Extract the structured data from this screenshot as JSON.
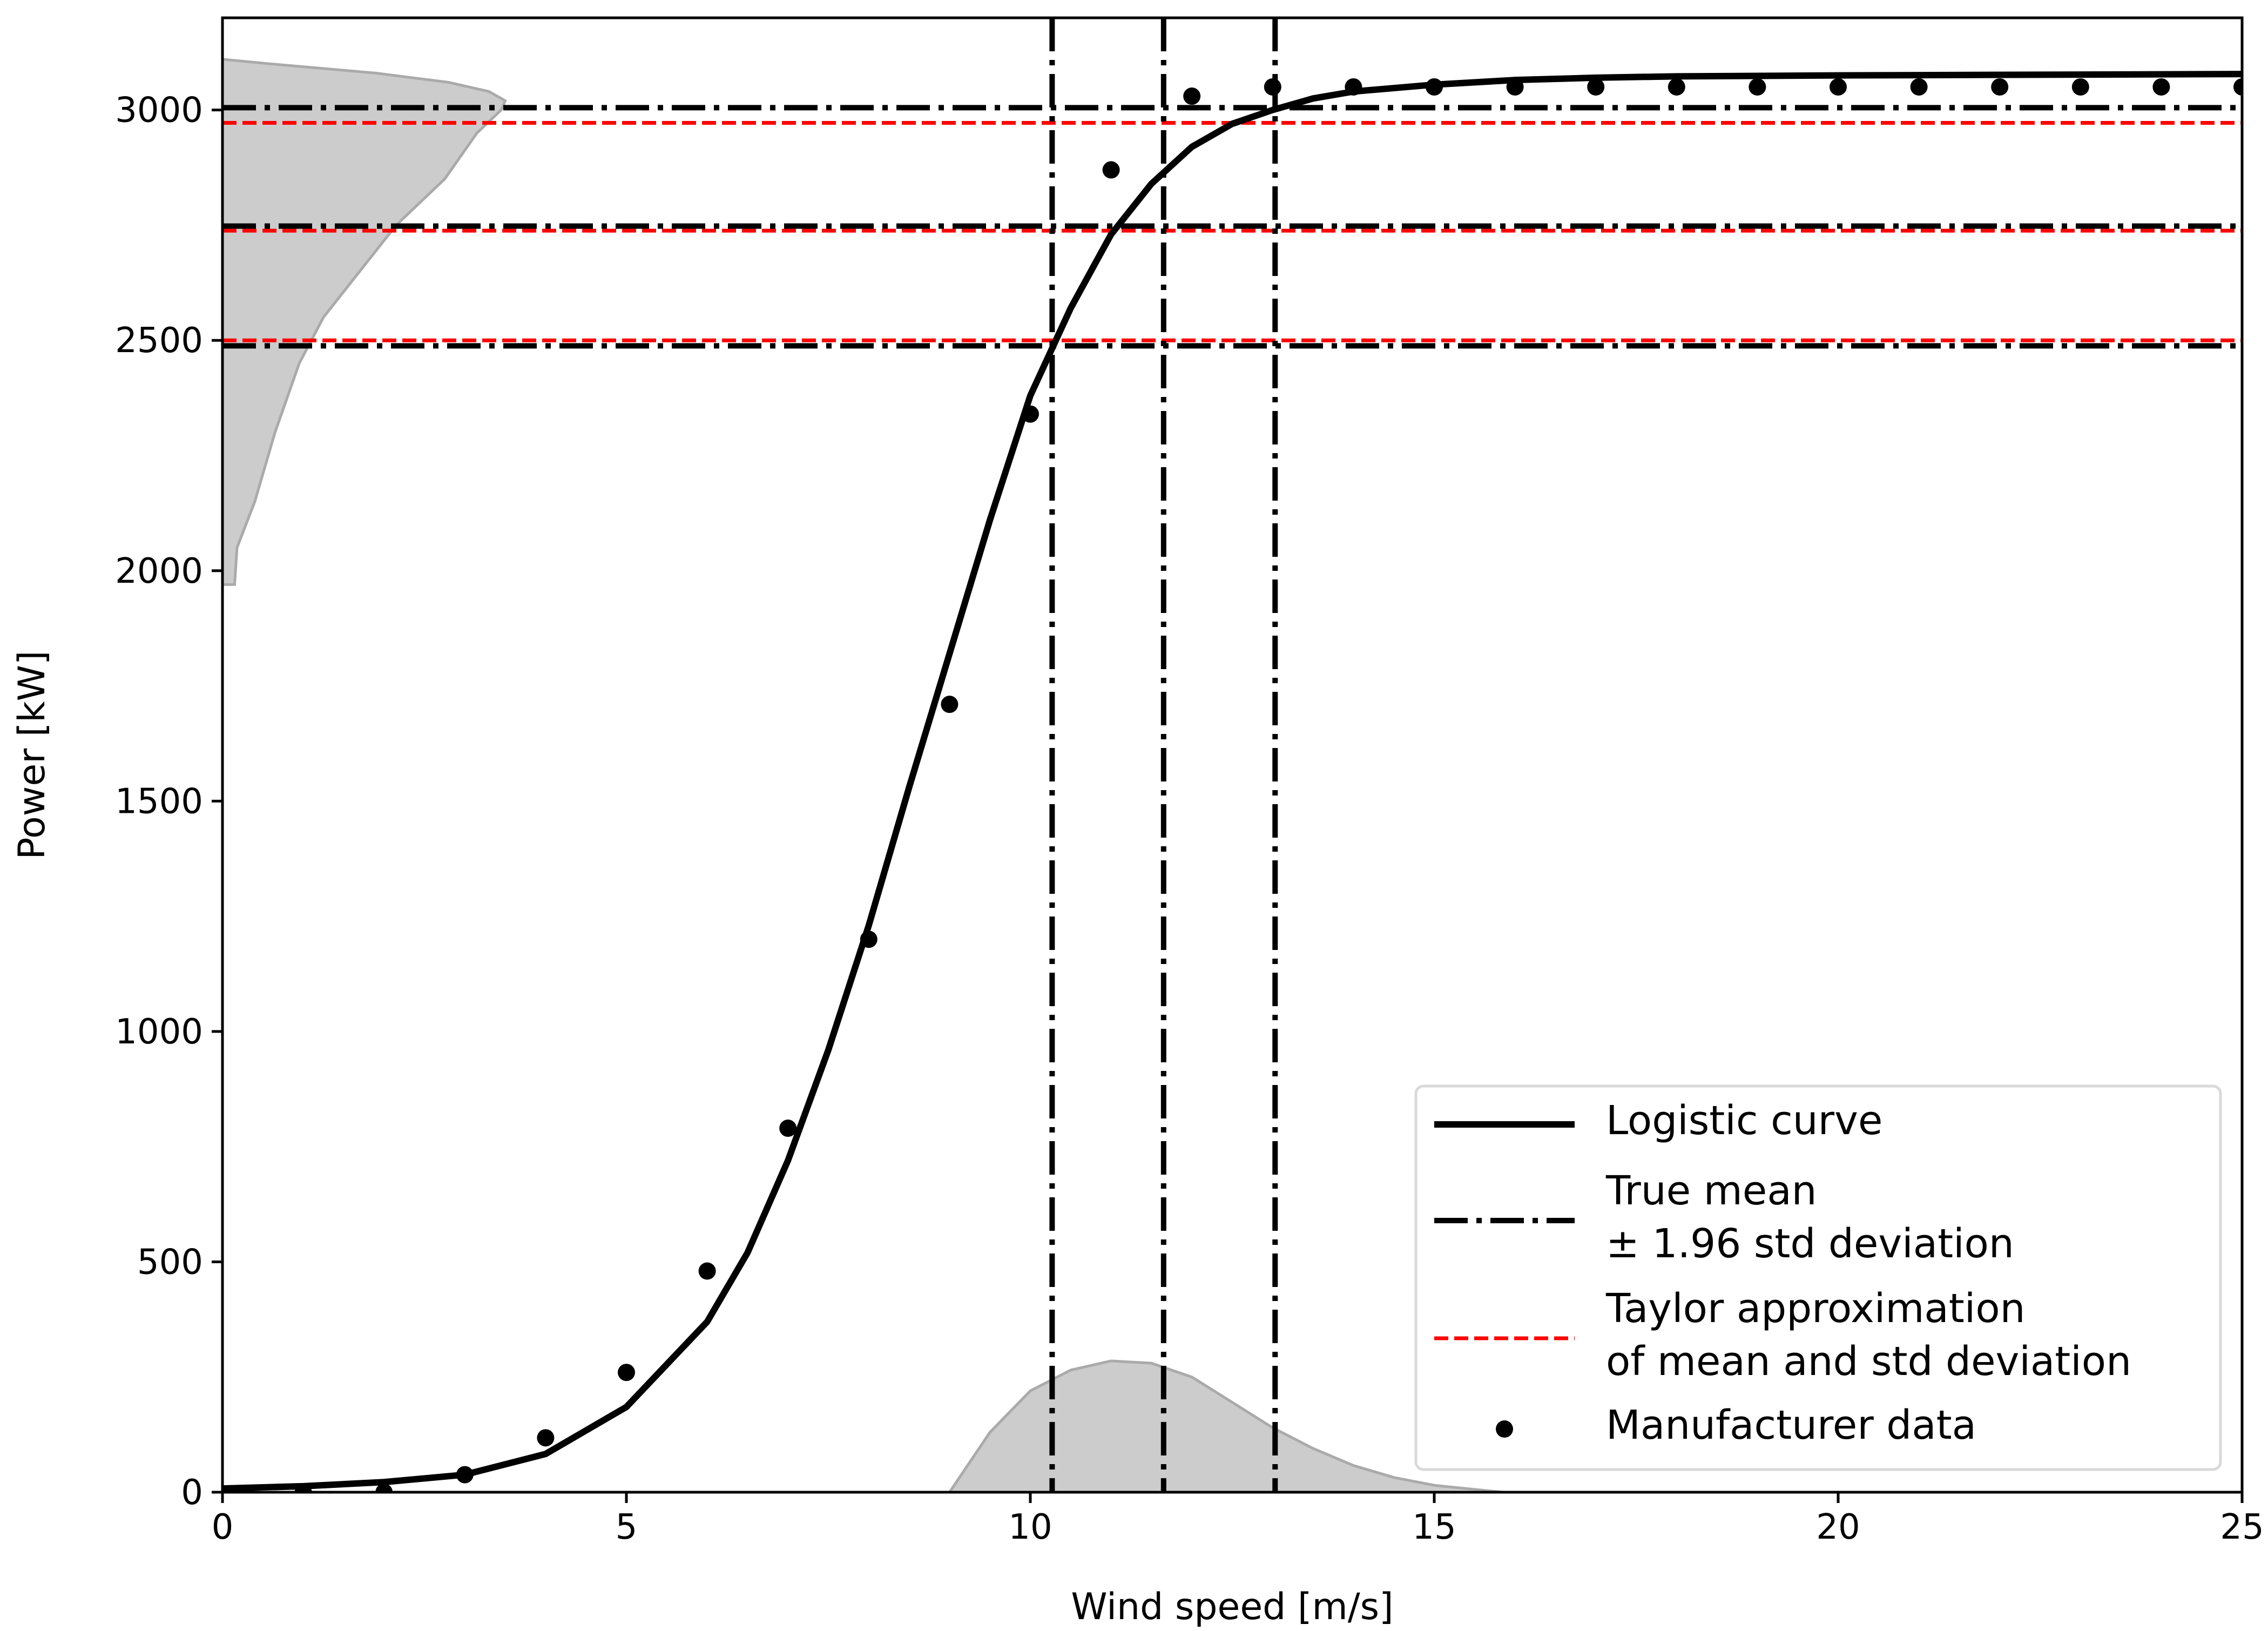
{
  "chart_data": {
    "type": "line",
    "title": "",
    "xlabel": "Wind speed [m/s]",
    "ylabel": "Power [kW]",
    "xlim": [
      0,
      25
    ],
    "ylim": [
      0,
      3200
    ],
    "xticks": [
      0,
      5,
      10,
      15,
      20,
      25
    ],
    "xtick_labels": [
      "0",
      "5",
      "10",
      "15",
      "20",
      "25"
    ],
    "yticks": [
      0,
      500,
      1000,
      1500,
      2000,
      2500,
      3000
    ],
    "ytick_labels": [
      "0",
      "500",
      "1000",
      "1500",
      "2000",
      "2500",
      "3000"
    ],
    "grid": false,
    "legend_position": "lower right",
    "legend": [
      {
        "label": "Logistic curve",
        "style": "solid-black"
      },
      {
        "label": "True mean\n± 1.96 std deviation",
        "style": "dashdot-black"
      },
      {
        "label": "Taylor approximation\nof mean and std deviation",
        "style": "dashed-red"
      },
      {
        "label": "Manufacturer data",
        "style": "marker-black"
      }
    ],
    "logistic_curve": {
      "x": [
        0,
        1,
        2,
        3,
        4,
        5,
        6,
        6.5,
        7,
        7.5,
        8,
        8.5,
        9,
        9.5,
        10,
        10.5,
        11,
        11.5,
        12,
        12.5,
        13,
        13.5,
        14,
        15,
        16,
        17,
        18,
        20,
        25
      ],
      "y": [
        8,
        13,
        22,
        38,
        83,
        185,
        370,
        520,
        720,
        960,
        1230,
        1530,
        1820,
        2110,
        2380,
        2570,
        2730,
        2840,
        2920,
        2970,
        3000,
        3025,
        3040,
        3055,
        3065,
        3070,
        3073,
        3075,
        3078
      ]
    },
    "manufacturer_data": {
      "x": [
        1,
        2,
        3,
        4,
        5,
        6,
        7,
        8,
        9,
        10,
        11,
        12,
        13,
        14,
        15,
        16,
        17,
        18,
        19,
        20,
        21,
        22,
        23,
        24,
        25
      ],
      "y": [
        0,
        0,
        38,
        118,
        260,
        480,
        790,
        1200,
        1710,
        2340,
        2870,
        3030,
        3050,
        3050,
        3050,
        3050,
        3050,
        3050,
        3050,
        3050,
        3050,
        3050,
        3050,
        3050,
        3050
      ]
    },
    "true_mean_lines": {
      "horizontal_y": [
        3005,
        2748,
        2488
      ],
      "vertical_x": [
        10.27,
        11.65,
        13.03
      ]
    },
    "taylor_lines": {
      "horizontal_y": [
        2972,
        2738,
        2500
      ]
    },
    "wind_distribution": {
      "x": [
        9.0,
        9.5,
        10.0,
        10.5,
        11.0,
        11.5,
        12.0,
        12.5,
        13.0,
        13.5,
        14.0,
        14.5,
        15.0,
        15.5,
        15.85
      ],
      "density": [
        0,
        130,
        220,
        265,
        285,
        280,
        250,
        195,
        140,
        95,
        58,
        32,
        15,
        6,
        0
      ]
    },
    "power_distribution": {
      "y": [
        1970,
        2050,
        2150,
        2300,
        2450,
        2550,
        2650,
        2750,
        2850,
        2950,
        3000,
        3020,
        3040,
        3060,
        3080,
        3100,
        3110
      ],
      "extent": [
        0.15,
        0.18,
        0.4,
        0.65,
        0.95,
        1.25,
        1.7,
        2.15,
        2.75,
        3.15,
        3.45,
        3.5,
        3.3,
        2.8,
        1.9,
        0.6,
        0
      ]
    },
    "colors": {
      "curve": "#000000",
      "taylor": "#ff0000",
      "marker": "#000000",
      "distribution_fill": "#cccccc",
      "distribution_edge": "#aaaaaa",
      "legend_border": "#d9d9d9"
    }
  }
}
